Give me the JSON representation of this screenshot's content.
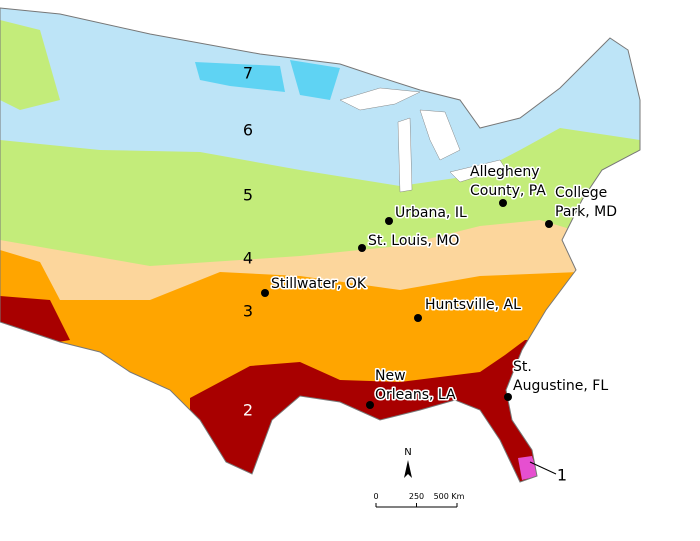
{
  "zone_labels": [
    7,
    6,
    5,
    4,
    3,
    2,
    1
  ],
  "cities": [
    {
      "label": [
        "Urbana, IL"
      ]
    },
    {
      "label": [
        "St. Louis, MO"
      ]
    },
    {
      "label": [
        "Allegheny",
        "County, PA"
      ]
    },
    {
      "label": [
        "College",
        "Park, MD"
      ]
    },
    {
      "label": [
        "Stillwater, OK"
      ]
    },
    {
      "label": [
        "Huntsville, AL"
      ]
    },
    {
      "label": [
        "New",
        "Orleans, LA"
      ]
    },
    {
      "label": [
        "St.",
        "Augustine, FL"
      ]
    }
  ],
  "north_arrow": "N",
  "scale_bar": {
    "ticks": [
      0,
      250,
      {
        "value": 500,
        "label": "500 Km"
      }
    ]
  }
}
